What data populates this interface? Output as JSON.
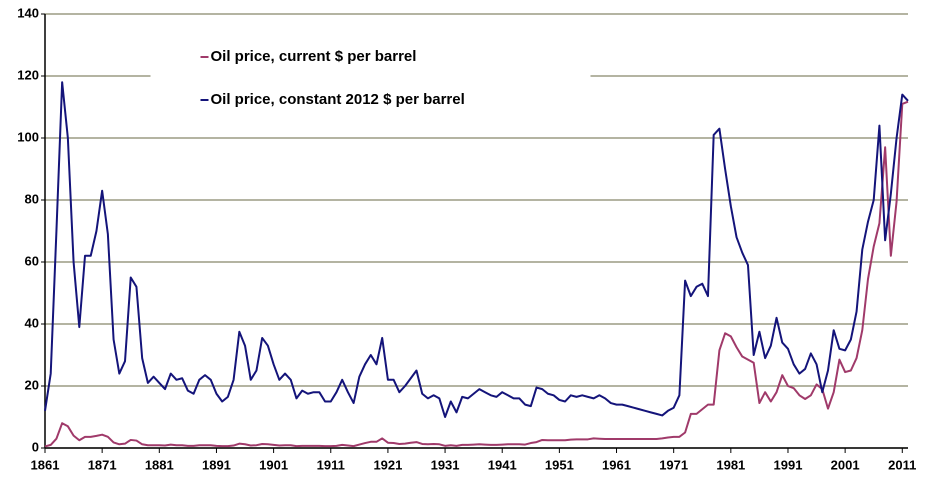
{
  "chart_data": {
    "type": "line",
    "x": [
      1861,
      1862,
      1863,
      1864,
      1865,
      1866,
      1867,
      1868,
      1869,
      1870,
      1871,
      1872,
      1873,
      1874,
      1875,
      1876,
      1877,
      1878,
      1879,
      1880,
      1881,
      1882,
      1883,
      1884,
      1885,
      1886,
      1887,
      1888,
      1889,
      1890,
      1891,
      1892,
      1893,
      1894,
      1895,
      1896,
      1897,
      1898,
      1899,
      1900,
      1901,
      1902,
      1903,
      1904,
      1905,
      1906,
      1907,
      1908,
      1909,
      1910,
      1911,
      1912,
      1913,
      1914,
      1915,
      1916,
      1917,
      1918,
      1919,
      1920,
      1921,
      1922,
      1923,
      1924,
      1925,
      1926,
      1927,
      1928,
      1929,
      1930,
      1931,
      1932,
      1933,
      1934,
      1935,
      1936,
      1937,
      1938,
      1939,
      1940,
      1941,
      1942,
      1943,
      1944,
      1945,
      1946,
      1947,
      1948,
      1949,
      1950,
      1951,
      1952,
      1953,
      1954,
      1955,
      1956,
      1957,
      1958,
      1959,
      1960,
      1961,
      1962,
      1963,
      1964,
      1965,
      1966,
      1967,
      1968,
      1969,
      1970,
      1971,
      1972,
      1973,
      1974,
      1975,
      1976,
      1977,
      1978,
      1979,
      1980,
      1981,
      1982,
      1983,
      1984,
      1985,
      1986,
      1987,
      1988,
      1989,
      1990,
      1991,
      1992,
      1993,
      1994,
      1995,
      1996,
      1997,
      1998,
      1999,
      2000,
      2001,
      2002,
      2003,
      2004,
      2005,
      2006,
      2007,
      2008,
      2009,
      2010,
      2011,
      2012
    ],
    "series": [
      {
        "name": "Oil price, current $ per barrel",
        "color": "#a03a6a",
        "values": [
          0.5,
          1,
          3,
          8,
          7,
          4,
          2.5,
          3.6,
          3.6,
          3.9,
          4.3,
          3.6,
          1.8,
          1.2,
          1.4,
          2.6,
          2.4,
          1.2,
          0.9,
          0.9,
          0.9,
          0.8,
          1.1,
          0.9,
          0.9,
          0.7,
          0.7,
          0.9,
          0.9,
          0.9,
          0.7,
          0.6,
          0.6,
          0.8,
          1.4,
          1.2,
          0.8,
          0.9,
          1.3,
          1.2,
          1,
          0.8,
          0.9,
          0.9,
          0.6,
          0.7,
          0.7,
          0.7,
          0.7,
          0.6,
          0.6,
          0.7,
          1,
          0.8,
          0.6,
          1.1,
          1.6,
          2,
          2,
          3.1,
          1.7,
          1.6,
          1.3,
          1.4,
          1.7,
          1.9,
          1.3,
          1.2,
          1.3,
          1.2,
          0.7,
          0.9,
          0.7,
          1,
          1,
          1.1,
          1.2,
          1.1,
          1,
          1,
          1.1,
          1.2,
          1.2,
          1.2,
          1.1,
          1.6,
          1.9,
          2.6,
          2.5,
          2.5,
          2.5,
          2.5,
          2.7,
          2.8,
          2.8,
          2.8,
          3.1,
          3,
          2.9,
          2.9,
          2.9,
          2.9,
          2.9,
          2.9,
          2.9,
          2.9,
          2.9,
          2.9,
          3.1,
          3.4,
          3.6,
          3.6,
          5,
          11,
          11,
          12.5,
          14,
          14,
          31.5,
          37,
          36,
          32.5,
          29.5,
          28.5,
          27.5,
          14.5,
          18,
          15,
          18,
          23.5,
          20,
          19.3,
          17,
          15.8,
          17,
          20.5,
          19,
          12.7,
          18,
          28.5,
          24.5,
          25,
          29,
          38,
          54.5,
          65,
          72.5,
          97,
          62,
          79.5,
          111,
          111.7
        ]
      },
      {
        "name": "Oil price, constant 2012 $ per barrel",
        "color": "#14147a",
        "values": [
          12,
          24,
          70,
          118,
          100,
          60,
          39,
          62,
          62,
          70,
          83,
          69,
          35,
          24,
          28,
          55,
          52,
          29,
          21,
          23,
          21,
          19,
          24,
          22,
          22.5,
          18.5,
          17.5,
          22,
          23.5,
          22,
          17.5,
          15,
          16.5,
          22,
          37.5,
          33,
          22,
          25,
          35.5,
          33,
          27,
          22,
          24,
          22,
          16,
          18.5,
          17.5,
          18,
          18,
          15,
          15,
          18,
          22,
          18,
          14.5,
          23,
          27,
          30,
          27,
          35.5,
          22,
          22,
          18,
          20,
          22.5,
          25,
          17.5,
          16,
          17,
          16,
          10,
          15,
          11.5,
          16.5,
          16,
          17.5,
          19,
          18,
          17,
          16.5,
          18,
          17,
          16,
          16,
          14,
          13.5,
          19.5,
          19,
          17.5,
          17,
          15.5,
          15,
          17,
          16.5,
          17,
          16.5,
          16,
          17,
          16,
          14.5,
          14,
          14,
          13.5,
          13,
          12.5,
          12,
          11.5,
          11,
          10.5,
          12,
          13,
          17,
          54,
          49,
          52,
          53,
          49,
          101,
          103,
          90,
          78,
          68,
          63,
          59,
          30,
          37.5,
          29,
          33,
          42,
          34,
          32,
          27,
          24,
          25.5,
          30.5,
          27,
          18,
          25,
          38,
          32,
          31.5,
          35,
          44,
          64,
          73,
          80,
          104,
          67,
          82,
          100,
          114,
          112
        ]
      }
    ],
    "xlim": [
      1861,
      2012
    ],
    "xticks": [
      1861,
      1871,
      1881,
      1891,
      1901,
      1911,
      1921,
      1931,
      1941,
      1951,
      1961,
      1971,
      1981,
      1991,
      2001,
      2011
    ],
    "ylim": [
      0,
      140
    ],
    "yticks": [
      0,
      20,
      40,
      60,
      80,
      100,
      120,
      140
    ],
    "grid": true,
    "legend": "upper center"
  }
}
